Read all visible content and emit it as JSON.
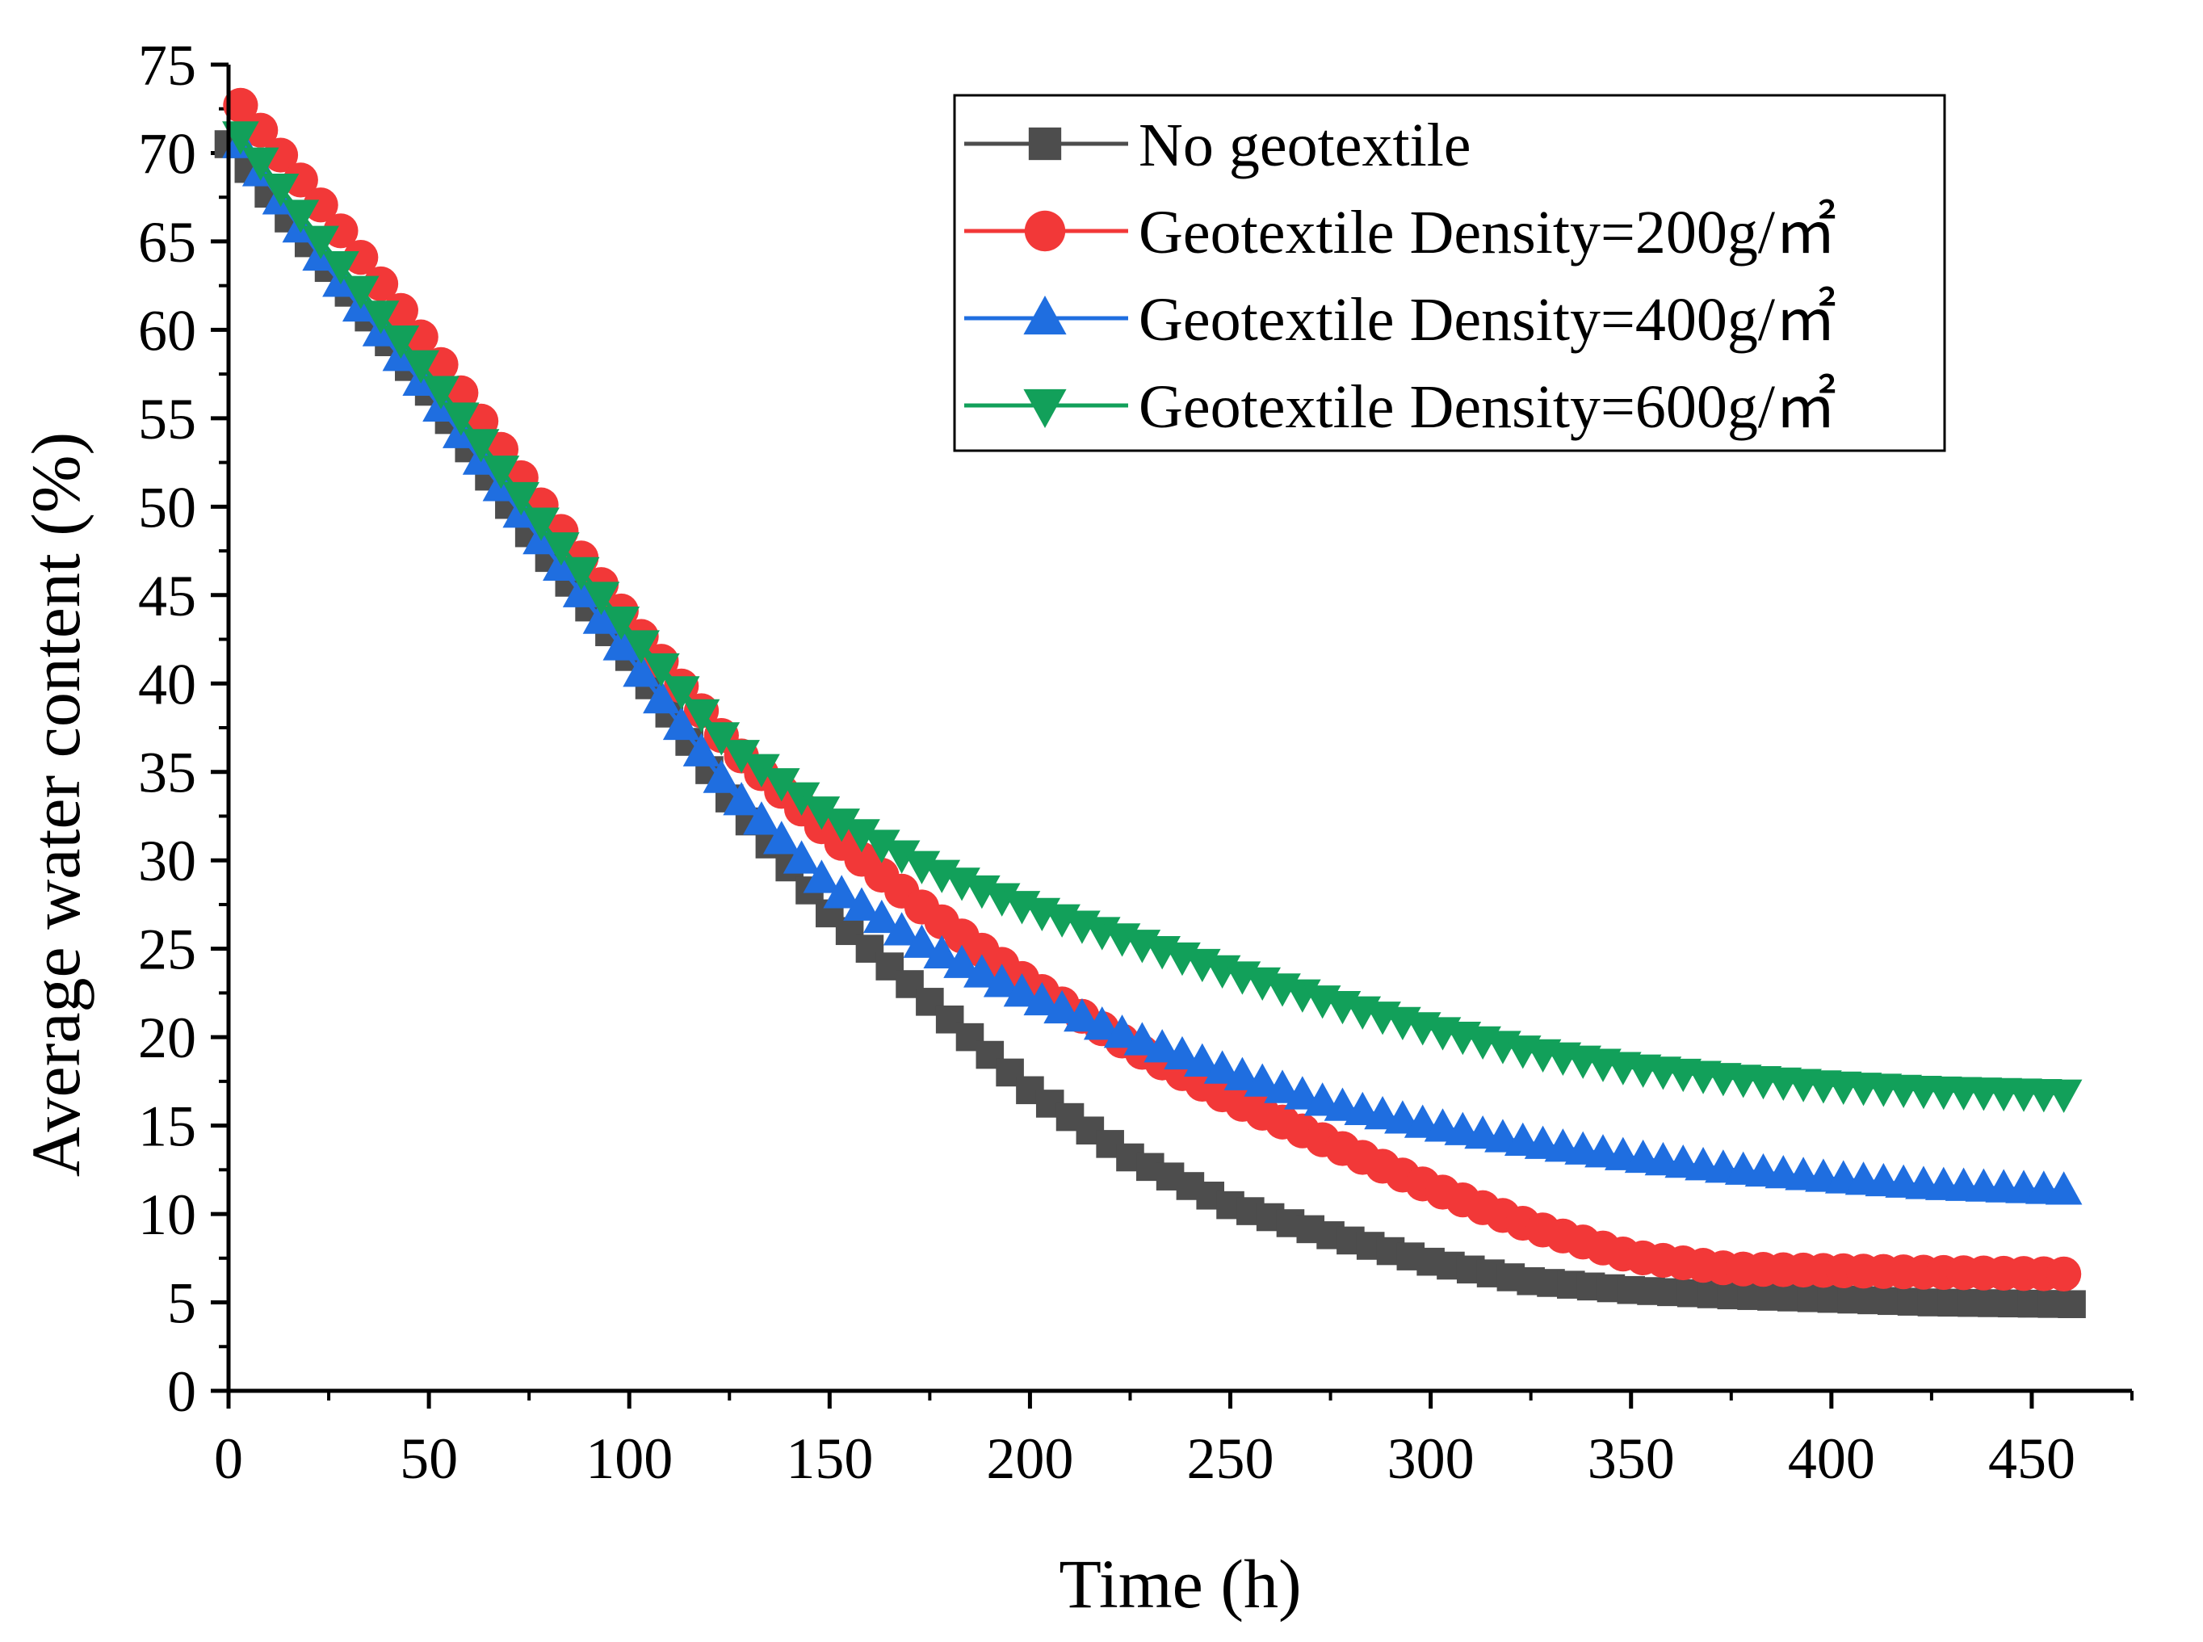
{
  "chart_data": {
    "type": "scatter",
    "title": "",
    "xlabel": "Time (h)",
    "ylabel": "Average water content (%)",
    "xlim": [
      0,
      475
    ],
    "ylim": [
      0,
      75
    ],
    "xticks": [
      0,
      50,
      100,
      150,
      200,
      250,
      300,
      350,
      400,
      450
    ],
    "yticks": [
      0,
      5,
      10,
      15,
      20,
      25,
      30,
      35,
      40,
      45,
      50,
      55,
      60,
      65,
      70,
      75
    ],
    "legend_position": "top-right",
    "series": [
      {
        "name": "No geotextile",
        "color": "#4d4d4d",
        "marker": "square",
        "x": [
          0,
          25,
          50,
          75,
          100,
          125,
          150,
          175,
          200,
          225,
          250,
          275,
          300,
          325,
          350,
          375,
          400,
          425,
          460
        ],
        "y": [
          70.5,
          63.5,
          56.5,
          48.5,
          41.5,
          33.5,
          27.0,
          22.0,
          17.0,
          13.2,
          10.5,
          8.8,
          7.3,
          6.2,
          5.7,
          5.4,
          5.2,
          5.0,
          4.9
        ]
      },
      {
        "name": "Geotextile Density=200g/㎡",
        "color": "#f23838",
        "marker": "circle",
        "x": [
          3,
          25,
          50,
          75,
          100,
          125,
          150,
          175,
          200,
          225,
          250,
          275,
          300,
          325,
          350,
          375,
          400,
          425,
          460
        ],
        "y": [
          72.7,
          66.5,
          59.0,
          51.0,
          43.5,
          36.5,
          31.5,
          27.0,
          23.0,
          19.5,
          16.5,
          14.0,
          11.5,
          9.3,
          7.6,
          6.9,
          6.8,
          6.7,
          6.6
        ]
      },
      {
        "name": "Geotextile Density=400g/㎡",
        "color": "#1f6ee0",
        "marker": "triangle-up",
        "x": [
          3,
          25,
          50,
          75,
          100,
          125,
          150,
          175,
          200,
          225,
          250,
          275,
          300,
          325,
          350,
          375,
          400,
          425,
          460
        ],
        "y": [
          70.5,
          63.5,
          56.5,
          49.0,
          41.5,
          34.0,
          28.5,
          25.0,
          22.3,
          20.0,
          18.0,
          16.2,
          15.0,
          14.0,
          13.2,
          12.5,
          12.0,
          11.6,
          11.3
        ]
      },
      {
        "name": "Geotextile Density=600g/㎡",
        "color": "#12a05a",
        "marker": "triangle-down",
        "x": [
          3,
          25,
          50,
          75,
          100,
          125,
          150,
          175,
          200,
          225,
          250,
          275,
          300,
          325,
          350,
          375,
          400,
          425,
          460
        ],
        "y": [
          71.0,
          64.5,
          57.5,
          50.0,
          43.0,
          36.5,
          32.5,
          29.5,
          27.3,
          25.5,
          23.7,
          22.0,
          20.5,
          19.2,
          18.3,
          17.7,
          17.3,
          17.0,
          16.8
        ]
      }
    ]
  }
}
